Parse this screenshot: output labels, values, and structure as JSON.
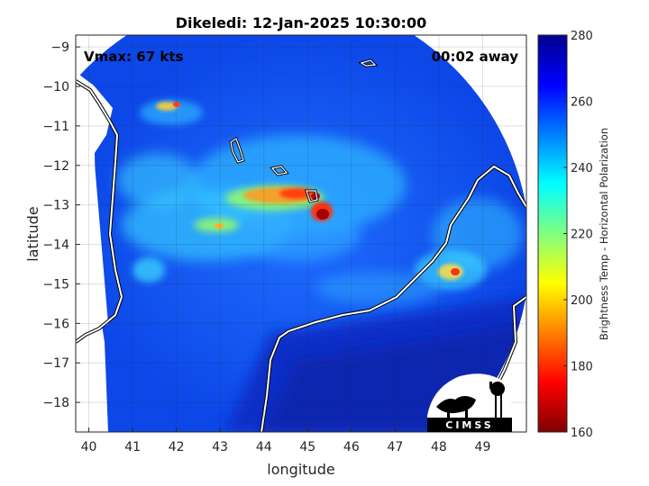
{
  "chart_data": {
    "type": "heatmap",
    "title": "Dikeledi: 12-Jan-2025 10:30:00",
    "xlabel": "longitude",
    "ylabel": "latitude",
    "xlim": [
      39.7,
      50.0
    ],
    "ylim": [
      -18.75,
      -8.7
    ],
    "xticks": [
      40,
      41,
      42,
      43,
      44,
      45,
      46,
      47,
      48,
      49
    ],
    "yticks": [
      -9,
      -10,
      -11,
      -12,
      -13,
      -14,
      -15,
      -16,
      -17,
      -18
    ],
    "grid": true,
    "annotations": {
      "left": "Vmax: 67 kts",
      "right": "00:02 away"
    },
    "colorbar": {
      "label": "Brightness Temp - Horizontal Polarization",
      "range": [
        160,
        280
      ],
      "ticks": [
        160,
        180,
        200,
        220,
        240,
        260,
        280
      ],
      "colormap": "jet"
    },
    "storm_center": {
      "lon": 45.2,
      "lat": -13.1,
      "min_temp": 165
    },
    "swath": {
      "center_lon": 45.0,
      "center_lat": -13.9,
      "radius_deg": 5.6
    }
  },
  "logo": {
    "text": "CIMSS"
  },
  "colors": {
    "outside": "#ffffff",
    "coast": "#ffffff",
    "coast_outline": "#000000"
  }
}
